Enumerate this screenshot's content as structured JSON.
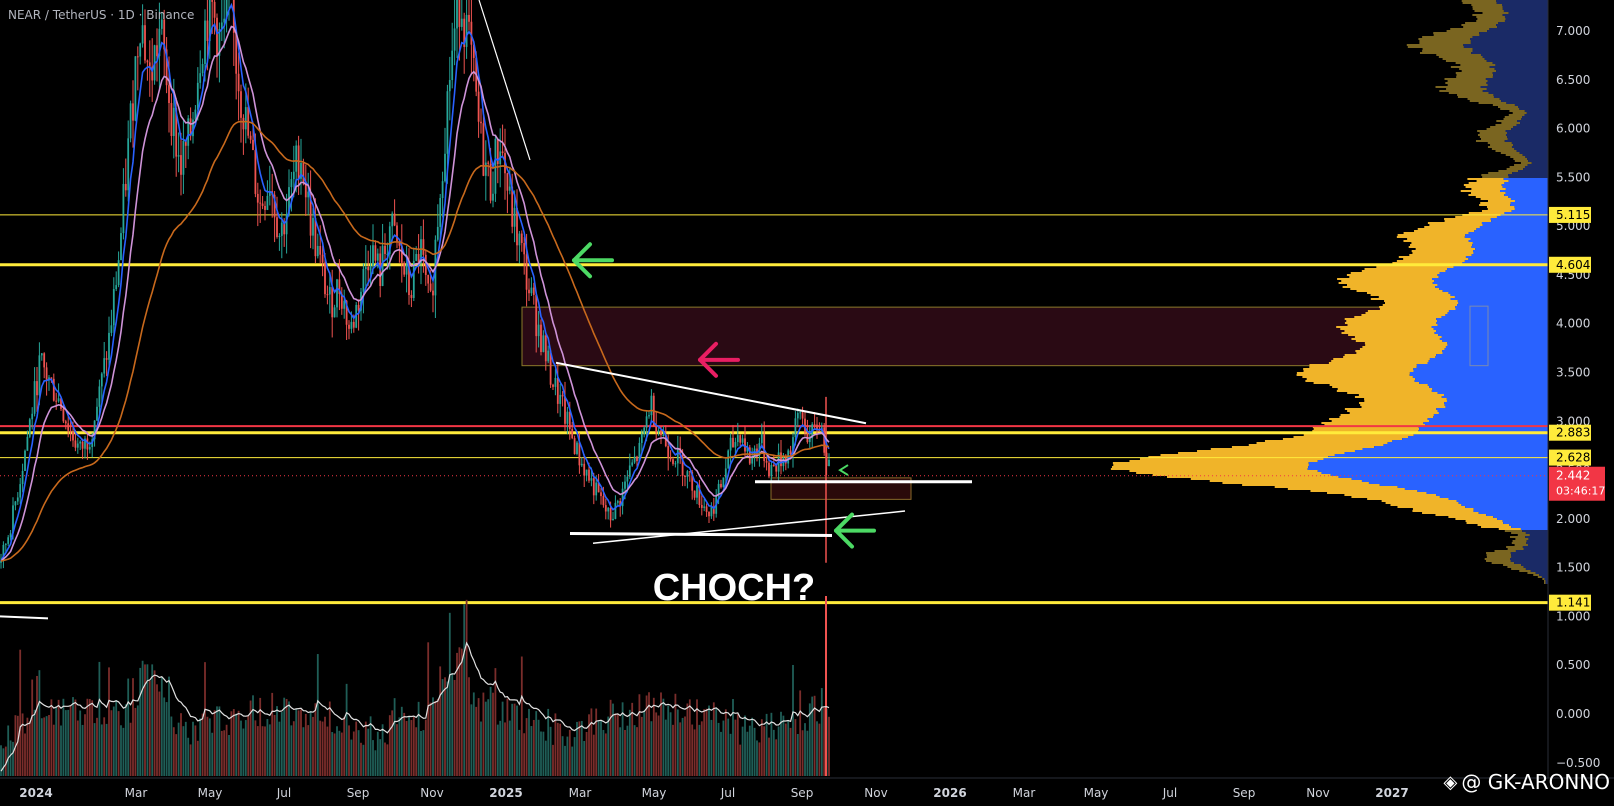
{
  "symbol_title": "NEAR / TetherUS · 1D · Binance",
  "watermark": "@ GK-ARONNO",
  "chart_data": {
    "type": "candlestick",
    "title": "NEAR / TetherUS · 1D · Binance",
    "annotation": "CHOCH?",
    "ylim": [
      -0.5,
      7.3
    ],
    "price_axis_ticks": [
      "7.000",
      "6.500",
      "6.000",
      "5.500",
      "5.000",
      "4.500",
      "4.000",
      "3.500",
      "3.000",
      "2.500",
      "2.000",
      "1.500",
      "1.000",
      "0.500",
      "0.000",
      "−0.500"
    ],
    "price_axis_values": [
      7.0,
      6.5,
      6.0,
      5.5,
      5.0,
      4.5,
      4.0,
      3.5,
      3.0,
      2.5,
      2.0,
      1.5,
      1.0,
      0.5,
      0.0,
      -0.5
    ],
    "time_axis_labels": [
      "2024",
      "Mar",
      "May",
      "Jul",
      "Sep",
      "Nov",
      "2025",
      "Mar",
      "May",
      "Jul",
      "Sep",
      "Nov",
      "2026",
      "Mar",
      "May",
      "Jul",
      "Sep",
      "Nov",
      "2027"
    ],
    "time_axis_bold": [
      "2024",
      "2025",
      "2026",
      "2027"
    ],
    "horizontal_levels": [
      {
        "label": "5.115",
        "value": 5.115,
        "color": "#ffeb3b",
        "weight": "thin"
      },
      {
        "label": "4.604",
        "value": 4.604,
        "color": "#ffeb3b",
        "weight": "thick"
      },
      {
        "label": "2.883",
        "value": 2.883,
        "color": "#ffeb3b",
        "weight": "thick"
      },
      {
        "label": "2.628",
        "value": 2.628,
        "color": "#ffeb3b",
        "weight": "thin"
      },
      {
        "label": "1.141",
        "value": 1.141,
        "color": "#ffeb3b",
        "weight": "thick"
      }
    ],
    "red_level": 2.95,
    "current_price": {
      "label": "2.442",
      "value": 2.442,
      "countdown": "03:46:17",
      "color": "#f23645"
    },
    "supply_zone": {
      "from": 3.57,
      "to": 4.17
    },
    "demand_zone": {
      "from": 2.2,
      "to": 2.42
    },
    "colors": {
      "up": "#26a69a",
      "down": "#ef5350",
      "ema_fast": "#2962ff",
      "ema_mid": "#ce93d8",
      "ema_slow": "#c8691c",
      "level": "#ffeb3b",
      "profile_up": "#f0b429",
      "profile_down": "#2962ff",
      "arrow_green": "#4cd964",
      "arrow_red": "#e91e63"
    },
    "price_path": [
      [
        0,
        1.55
      ],
      [
        10,
        1.9
      ],
      [
        20,
        2.4
      ],
      [
        30,
        3.0
      ],
      [
        40,
        3.6
      ],
      [
        50,
        3.4
      ],
      [
        60,
        3.2
      ],
      [
        70,
        2.9
      ],
      [
        80,
        2.7
      ],
      [
        90,
        2.85
      ],
      [
        100,
        3.3
      ],
      [
        110,
        3.9
      ],
      [
        120,
        4.8
      ],
      [
        130,
        6.0
      ],
      [
        140,
        7.2
      ],
      [
        150,
        6.5
      ],
      [
        160,
        7.0
      ],
      [
        170,
        6.3
      ],
      [
        180,
        5.6
      ],
      [
        190,
        5.9
      ],
      [
        200,
        6.8
      ],
      [
        210,
        7.3
      ],
      [
        220,
        6.9
      ],
      [
        230,
        7.2
      ],
      [
        240,
        6.4
      ],
      [
        250,
        5.8
      ],
      [
        260,
        5.2
      ],
      [
        270,
        5.5
      ],
      [
        280,
        4.9
      ],
      [
        290,
        5.3
      ],
      [
        300,
        5.8
      ],
      [
        310,
        5.1
      ],
      [
        320,
        4.6
      ],
      [
        330,
        4.2
      ],
      [
        340,
        4.4
      ],
      [
        350,
        3.9
      ],
      [
        360,
        4.3
      ],
      [
        370,
        4.8
      ],
      [
        380,
        4.5
      ],
      [
        390,
        5.0
      ],
      [
        400,
        4.7
      ],
      [
        410,
        4.3
      ],
      [
        420,
        4.8
      ],
      [
        430,
        4.1
      ],
      [
        440,
        5.4
      ],
      [
        450,
        6.6
      ],
      [
        460,
        7.4
      ],
      [
        470,
        6.8
      ],
      [
        480,
        5.9
      ],
      [
        490,
        5.4
      ],
      [
        500,
        5.9
      ],
      [
        510,
        5.2
      ],
      [
        520,
        4.8
      ],
      [
        530,
        4.3
      ],
      [
        540,
        3.9
      ],
      [
        550,
        3.5
      ],
      [
        560,
        3.2
      ],
      [
        570,
        2.9
      ],
      [
        580,
        2.6
      ],
      [
        590,
        2.4
      ],
      [
        600,
        2.2
      ],
      [
        610,
        2.0
      ],
      [
        620,
        2.2
      ],
      [
        630,
        2.5
      ],
      [
        640,
        2.7
      ],
      [
        650,
        3.2
      ],
      [
        660,
        2.9
      ],
      [
        670,
        2.7
      ],
      [
        680,
        2.6
      ],
      [
        690,
        2.4
      ],
      [
        700,
        2.2
      ],
      [
        710,
        2.05
      ],
      [
        720,
        2.3
      ],
      [
        730,
        2.7
      ],
      [
        740,
        2.9
      ],
      [
        750,
        2.6
      ],
      [
        760,
        2.8
      ],
      [
        770,
        2.5
      ],
      [
        780,
        2.6
      ],
      [
        790,
        2.7
      ],
      [
        800,
        3.1
      ],
      [
        810,
        2.8
      ],
      [
        820,
        3.0
      ],
      [
        830,
        2.44
      ]
    ]
  }
}
